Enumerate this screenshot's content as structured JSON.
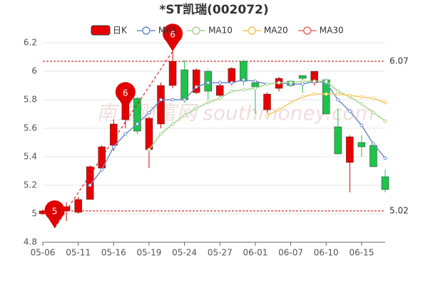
{
  "chart_data": {
    "type": "candlestick",
    "title": "*ST凯瑞(002072)",
    "watermark": "南方财富网 southmoney.com",
    "categories": [
      "05-06",
      null,
      null,
      "05-11",
      null,
      null,
      "05-16",
      null,
      null,
      "05-19",
      null,
      null,
      "05-24",
      null,
      null,
      "05-27",
      null,
      null,
      "06-01",
      null,
      null,
      "06-07",
      null,
      null,
      "06-10",
      null,
      null,
      "06-15",
      null,
      null
    ],
    "candles": {
      "name": "日K",
      "up_color": "#e60000",
      "down_color": "#1ec34a",
      "open": [
        5.0,
        5.01,
        5.02,
        5.01,
        5.1,
        5.32,
        5.48,
        5.66,
        5.81,
        5.45,
        5.63,
        5.9,
        6.01,
        5.85,
        6.0,
        5.83,
        5.92,
        6.07,
        5.92,
        5.73,
        5.88,
        5.93,
        5.97,
        5.92,
        5.94,
        5.61,
        5.36,
        5.5,
        5.48,
        5.26
      ],
      "high": [
        5.03,
        5.07,
        5.08,
        5.12,
        5.34,
        5.48,
        5.66,
        5.88,
        5.82,
        5.68,
        5.92,
        6.14,
        6.08,
        6.02,
        6.01,
        5.92,
        6.03,
        6.08,
        5.93,
        5.85,
        5.96,
        5.94,
        5.97,
        6.0,
        5.95,
        5.74,
        5.55,
        5.55,
        5.49,
        5.31
      ],
      "low": [
        4.99,
        4.9,
        4.95,
        5.0,
        5.1,
        5.3,
        5.44,
        5.6,
        5.56,
        5.32,
        5.6,
        5.88,
        5.78,
        5.84,
        5.8,
        5.8,
        5.9,
        5.9,
        5.7,
        5.71,
        5.86,
        5.89,
        5.85,
        5.9,
        5.7,
        5.42,
        5.15,
        5.4,
        5.33,
        5.15
      ],
      "close": [
        5.02,
        5.04,
        5.05,
        5.1,
        5.33,
        5.47,
        5.63,
        5.8,
        5.58,
        5.67,
        5.9,
        6.07,
        5.8,
        6.01,
        5.86,
        5.9,
        6.02,
        5.93,
        5.89,
        5.84,
        5.95,
        5.9,
        5.95,
        6.0,
        5.7,
        5.42,
        5.54,
        5.47,
        5.33,
        5.17
      ]
    },
    "series": [
      {
        "name": "MA5",
        "color": "#6f8ccb",
        "values": [
          null,
          null,
          null,
          null,
          5.2,
          5.31,
          5.47,
          5.56,
          5.63,
          5.71,
          5.8,
          5.8,
          5.8,
          5.89,
          5.92,
          5.92,
          5.92,
          5.94,
          5.93,
          5.91,
          5.92,
          5.91,
          5.91,
          5.93,
          5.92,
          5.8,
          5.72,
          5.62,
          5.49,
          5.39
        ]
      },
      {
        "name": "MA10",
        "color": "#a5d68f",
        "values": [
          null,
          null,
          null,
          null,
          null,
          null,
          null,
          null,
          null,
          5.45,
          5.56,
          5.63,
          5.69,
          5.74,
          5.78,
          5.81,
          5.86,
          5.87,
          5.88,
          5.91,
          5.92,
          5.92,
          5.93,
          5.93,
          5.93,
          5.86,
          5.82,
          5.77,
          5.71,
          5.65
        ]
      },
      {
        "name": "MA20",
        "color": "#f7c65f",
        "values": [
          null,
          null,
          null,
          null,
          null,
          null,
          null,
          null,
          null,
          null,
          null,
          null,
          null,
          null,
          null,
          null,
          null,
          null,
          null,
          5.69,
          5.73,
          5.78,
          5.82,
          5.84,
          5.84,
          5.84,
          5.83,
          5.82,
          5.81,
          5.78
        ]
      },
      {
        "name": "MA30",
        "color": "#ee6b6b",
        "values": [
          null,
          null,
          null,
          null,
          null,
          null,
          null,
          null,
          null,
          null,
          null,
          null,
          null,
          null,
          null,
          null,
          null,
          null,
          null,
          null,
          null,
          null,
          null,
          null,
          null,
          null,
          null,
          null,
          null,
          null
        ]
      }
    ],
    "ref_lines": [
      6.07,
      5.02
    ],
    "ref_color": "#c00000",
    "pins": [
      {
        "index": 11,
        "value": 6.14,
        "label": "6"
      },
      {
        "index": 7,
        "value": 5.73,
        "label": "6"
      },
      {
        "index": 1,
        "value": 4.9,
        "label": "5"
      }
    ],
    "pin_color": "#e00000",
    "ylim": [
      4.8,
      6.2
    ],
    "yticks": [
      4.8,
      5,
      5.2,
      5.4,
      5.6,
      5.8,
      6,
      6.2
    ],
    "grid": true
  }
}
